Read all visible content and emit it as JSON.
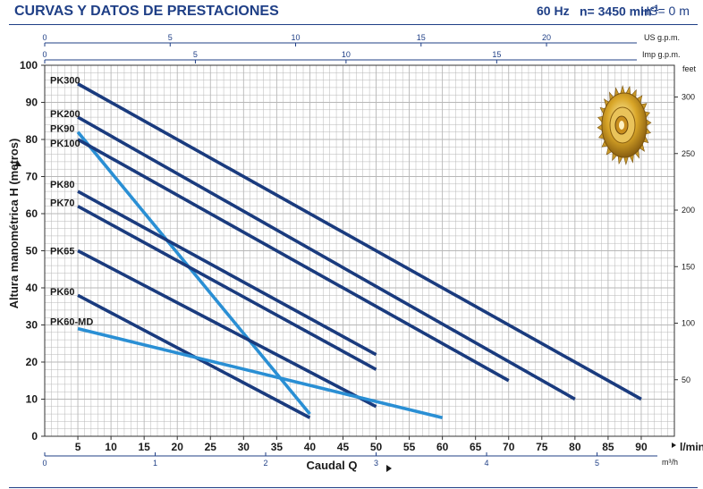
{
  "header": {
    "title": "CURVAS Y DATOS DE PRESTACIONES",
    "frequency": "60 Hz",
    "speed": "n= 3450 min",
    "speed_exp": "-1",
    "hs": "HS= 0 m"
  },
  "chart_data": {
    "type": "line",
    "title": "",
    "xlabel": "Caudal Q",
    "xunit": "l/min",
    "ylabel": "Altura manométrica H (metros)",
    "xlim": [
      0,
      95
    ],
    "ylim": [
      0,
      100
    ],
    "x_ticks": [
      5,
      10,
      15,
      20,
      25,
      30,
      35,
      40,
      45,
      50,
      55,
      60,
      65,
      70,
      75,
      80,
      85,
      90
    ],
    "y_ticks": [
      0,
      10,
      20,
      30,
      40,
      50,
      60,
      70,
      80,
      90,
      100
    ],
    "top_axis_usgpm": {
      "label": "US g.p.m.",
      "ticks": [
        0,
        5,
        10,
        15,
        20
      ]
    },
    "top_axis_impgpm": {
      "label": "Imp g.p.m.",
      "ticks": [
        0,
        5,
        10,
        15
      ]
    },
    "right_axis_feet": {
      "label": "feet",
      "ticks": [
        50,
        100,
        150,
        200,
        250,
        300
      ]
    },
    "bottom_axis_m3h": {
      "label": "m³/h",
      "ticks": [
        0,
        1,
        2,
        3,
        4,
        5
      ]
    },
    "colors": {
      "dark": "#1a3b7e",
      "light": "#2a8fd4",
      "grid": "#b7b7b7",
      "axis": "#1f3f86"
    },
    "series": [
      {
        "name": "PK300",
        "tone": "dark",
        "x": [
          5,
          90
        ],
        "y": [
          95,
          10
        ]
      },
      {
        "name": "PK200",
        "tone": "dark",
        "x": [
          5,
          80
        ],
        "y": [
          86,
          10
        ]
      },
      {
        "name": "PK90",
        "tone": "light",
        "x": [
          5,
          40
        ],
        "y": [
          82,
          6
        ]
      },
      {
        "name": "PK100",
        "tone": "dark",
        "x": [
          5,
          70
        ],
        "y": [
          80,
          15
        ]
      },
      {
        "name": "PK80",
        "tone": "dark",
        "x": [
          5,
          50
        ],
        "y": [
          66,
          22
        ]
      },
      {
        "name": "PK70",
        "tone": "dark",
        "x": [
          5,
          50
        ],
        "y": [
          62,
          18
        ]
      },
      {
        "name": "PK65",
        "tone": "dark",
        "x": [
          5,
          50
        ],
        "y": [
          50,
          8
        ]
      },
      {
        "name": "PK60",
        "tone": "dark",
        "x": [
          5,
          40
        ],
        "y": [
          38,
          5
        ]
      },
      {
        "name": "PK60-MD",
        "tone": "light",
        "x": [
          5,
          60
        ],
        "y": [
          29,
          5
        ]
      }
    ],
    "label_y": [
      96,
      87,
      83,
      79,
      68,
      63,
      50,
      39,
      31
    ]
  }
}
